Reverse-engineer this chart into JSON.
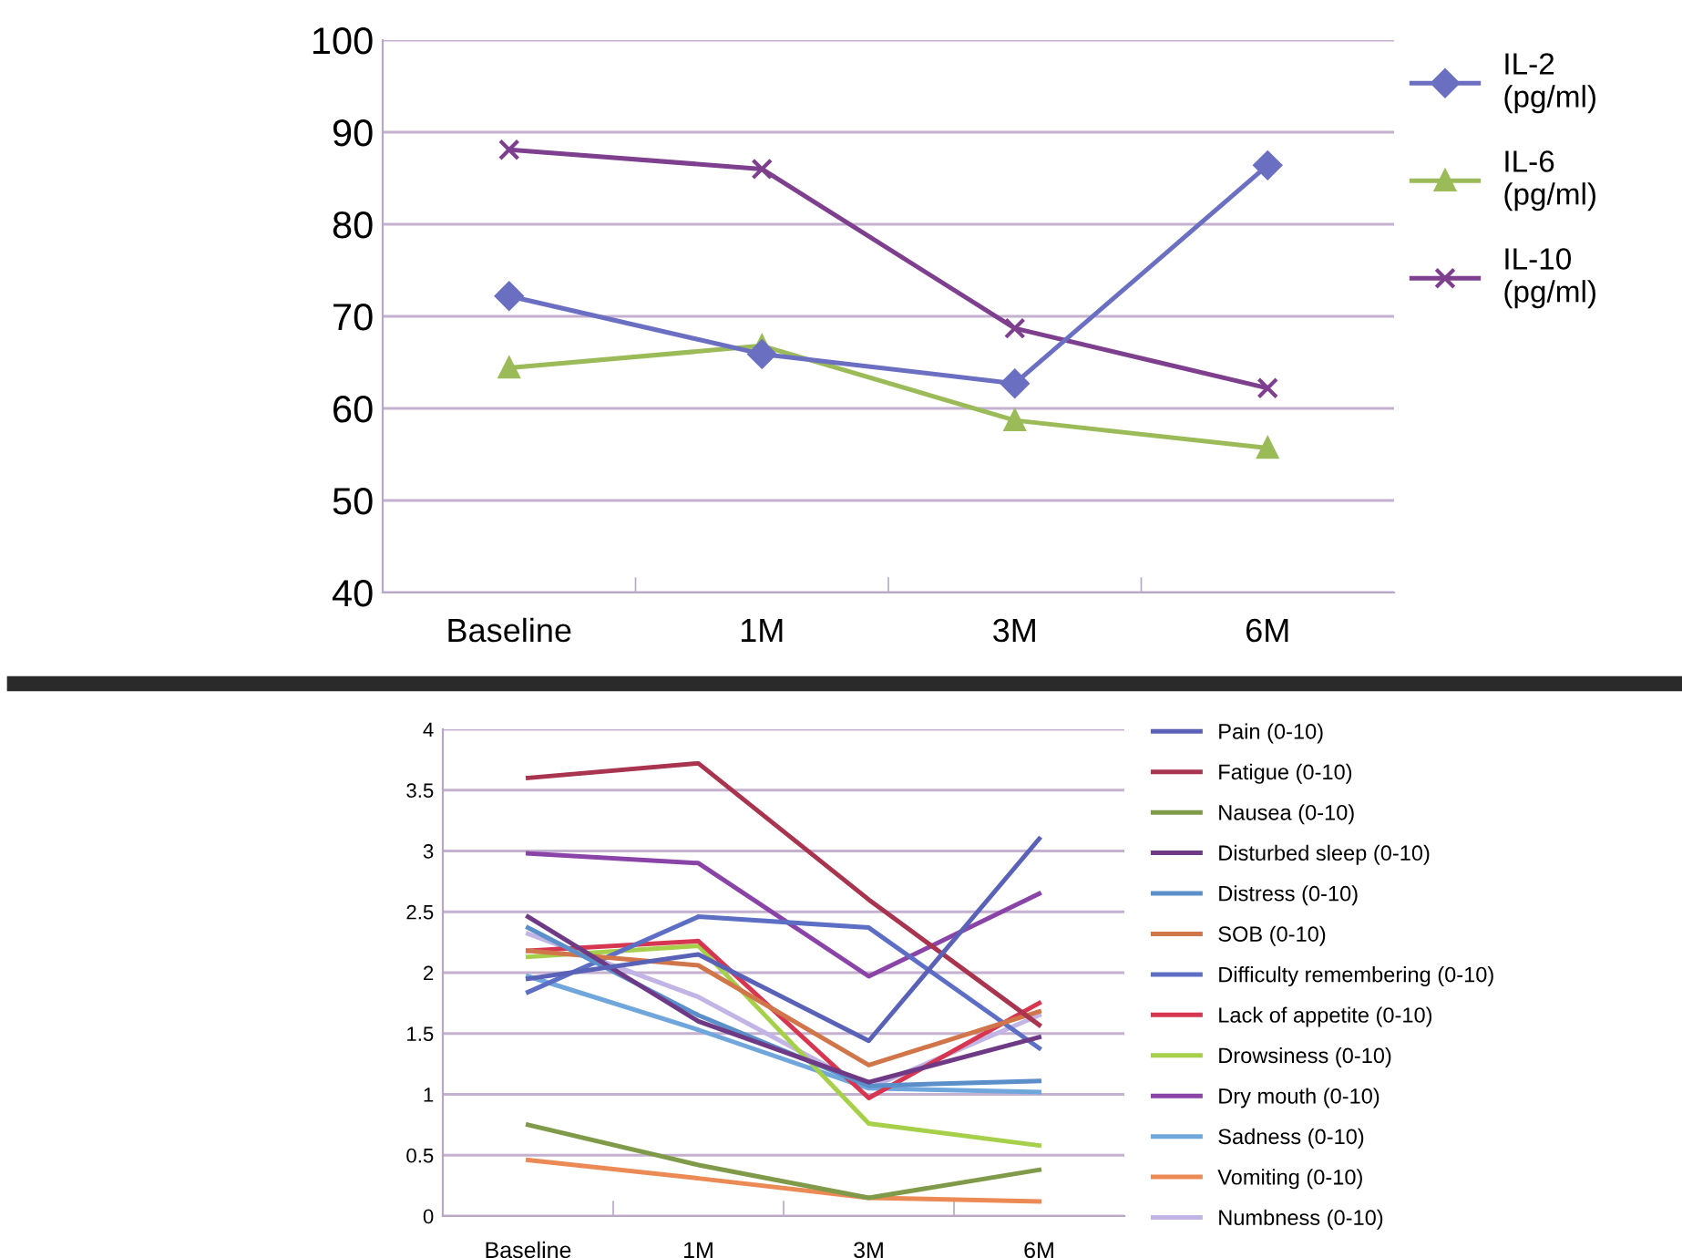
{
  "chart_data": [
    {
      "type": "line",
      "categories": [
        "Baseline",
        "1M",
        "3M",
        "6M"
      ],
      "ylim": [
        40,
        100
      ],
      "yticks": [
        40,
        50,
        60,
        70,
        80,
        90,
        100
      ],
      "grid": "y",
      "legend": "right",
      "series": [
        {
          "name": "IL-2\n(pg/ml)",
          "color": "#6b6fc2",
          "marker": "diamond",
          "values": [
            72.2,
            65.9,
            62.7,
            86.4
          ]
        },
        {
          "name": "IL-6\n(pg/ml)",
          "color": "#9bbb59",
          "marker": "triangle",
          "values": [
            64.4,
            66.8,
            58.7,
            55.7
          ]
        },
        {
          "name": "IL-10\n(pg/ml)",
          "color": "#7e3f8e",
          "marker": "cross",
          "values": [
            88.1,
            86.0,
            68.7,
            62.2
          ]
        }
      ]
    },
    {
      "type": "line",
      "categories": [
        "Baseline",
        "1M",
        "3M",
        "6M"
      ],
      "ylim": [
        0,
        4
      ],
      "yticks": [
        0,
        0.5,
        1,
        1.5,
        2,
        2.5,
        3,
        3.5,
        4
      ],
      "grid": "y",
      "legend": "right",
      "marker": "none",
      "series": [
        {
          "name": "Pain (0-10)",
          "color": "#5a62b8",
          "values": [
            1.95,
            2.15,
            1.44,
            3.1
          ]
        },
        {
          "name": "Fatigue (0-10)",
          "color": "#a8344f",
          "values": [
            3.6,
            3.72,
            2.6,
            1.57
          ]
        },
        {
          "name": "Nausea (0-10)",
          "color": "#7f9a48",
          "values": [
            0.75,
            0.42,
            0.15,
            0.38
          ]
        },
        {
          "name": "Disturbed sleep (0-10)",
          "color": "#6e3a86",
          "values": [
            2.46,
            1.6,
            1.1,
            1.47
          ]
        },
        {
          "name": "Distress (0-10)",
          "color": "#5b8fc9",
          "values": [
            2.37,
            1.65,
            1.07,
            1.11
          ]
        },
        {
          "name": "SOB (0-10)",
          "color": "#d0764a",
          "values": [
            2.18,
            2.06,
            1.24,
            1.68
          ]
        },
        {
          "name": "Difficulty remembering (0-10)",
          "color": "#5d6fc4",
          "values": [
            1.84,
            2.46,
            2.37,
            1.38
          ]
        },
        {
          "name": "Lack of appetite (0-10)",
          "color": "#d6364f",
          "values": [
            2.18,
            2.26,
            0.97,
            1.75
          ]
        },
        {
          "name": "Drowsiness (0-10)",
          "color": "#a6cf4a",
          "values": [
            2.13,
            2.22,
            0.76,
            0.58
          ]
        },
        {
          "name": "Dry mouth (0-10)",
          "color": "#8a44a8",
          "values": [
            2.98,
            2.9,
            1.97,
            2.65
          ]
        },
        {
          "name": "Sadness (0-10)",
          "color": "#6fa6dc",
          "values": [
            1.97,
            1.53,
            1.05,
            1.02
          ]
        },
        {
          "name": "Vomiting (0-10)",
          "color": "#ec8a55",
          "values": [
            0.46,
            0.31,
            0.15,
            0.12
          ]
        },
        {
          "name": "Numbness (0-10)",
          "color": "#c2b4e4",
          "values": [
            2.32,
            1.8,
            1.05,
            1.65
          ]
        }
      ]
    }
  ]
}
